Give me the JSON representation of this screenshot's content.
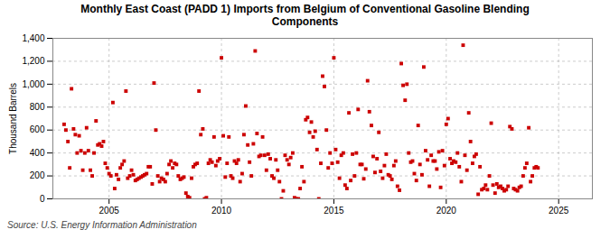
{
  "chart_data": {
    "type": "scatter",
    "title": "Monthly East Coast (PADD 1) Imports from Belgium of Conventional Gasoline Blending\nComponents",
    "ylabel": "Thousand Barrels",
    "source": "Source: U.S. Energy Information Administration",
    "color": "#cc0000",
    "marker": "square",
    "grid": true,
    "xlim": [
      2002.5,
      2026.5
    ],
    "ylim": [
      0,
      1400
    ],
    "xticks": [
      2005,
      2010,
      2015,
      2020,
      2025
    ],
    "yticks": [
      0,
      200,
      400,
      600,
      800,
      {
        "value": 1000,
        "label": "1,000"
      },
      {
        "value": 1200,
        "label": "1,200"
      },
      {
        "value": 1400,
        "label": "1,400"
      }
    ],
    "x": [
      2003.0,
      2003.08,
      2003.17,
      2003.25,
      2003.33,
      2003.42,
      2003.5,
      2003.58,
      2003.67,
      2003.75,
      2003.83,
      2003.92,
      2004.0,
      2004.08,
      2004.17,
      2004.25,
      2004.33,
      2004.42,
      2004.5,
      2004.58,
      2004.67,
      2004.75,
      2004.83,
      2004.92,
      2005.0,
      2005.08,
      2005.17,
      2005.25,
      2005.33,
      2005.42,
      2005.5,
      2005.58,
      2005.67,
      2005.75,
      2005.83,
      2005.92,
      2006.0,
      2006.08,
      2006.17,
      2006.25,
      2006.33,
      2006.42,
      2006.5,
      2006.58,
      2006.67,
      2006.75,
      2006.83,
      2006.92,
      2007.0,
      2007.08,
      2007.17,
      2007.25,
      2007.33,
      2007.42,
      2007.5,
      2007.58,
      2007.67,
      2007.75,
      2007.83,
      2007.92,
      2008.0,
      2008.08,
      2008.17,
      2008.25,
      2008.33,
      2008.42,
      2008.5,
      2008.58,
      2008.67,
      2008.75,
      2008.83,
      2008.92,
      2009.0,
      2009.08,
      2009.17,
      2009.25,
      2009.33,
      2009.42,
      2009.5,
      2009.58,
      2009.67,
      2009.75,
      2009.83,
      2009.92,
      2010.0,
      2010.08,
      2010.17,
      2010.25,
      2010.33,
      2010.42,
      2010.5,
      2010.58,
      2010.67,
      2010.75,
      2010.83,
      2010.92,
      2011.0,
      2011.08,
      2011.17,
      2011.25,
      2011.33,
      2011.42,
      2011.5,
      2011.58,
      2011.67,
      2011.75,
      2011.83,
      2011.92,
      2012.0,
      2012.08,
      2012.17,
      2012.25,
      2012.33,
      2012.42,
      2012.5,
      2012.58,
      2012.67,
      2012.75,
      2012.83,
      2012.92,
      2013.0,
      2013.08,
      2013.17,
      2013.25,
      2013.33,
      2013.42,
      2013.5,
      2013.58,
      2013.67,
      2013.75,
      2013.83,
      2013.92,
      2014.0,
      2014.08,
      2014.17,
      2014.25,
      2014.33,
      2014.42,
      2014.5,
      2014.58,
      2014.67,
      2014.75,
      2014.83,
      2014.92,
      2015.0,
      2015.08,
      2015.17,
      2015.25,
      2015.33,
      2015.42,
      2015.5,
      2015.58,
      2015.67,
      2015.75,
      2015.83,
      2015.92,
      2016.0,
      2016.08,
      2016.17,
      2016.25,
      2016.33,
      2016.42,
      2016.5,
      2016.58,
      2016.67,
      2016.75,
      2016.83,
      2016.92,
      2017.0,
      2017.08,
      2017.17,
      2017.25,
      2017.33,
      2017.42,
      2017.5,
      2017.58,
      2017.67,
      2017.75,
      2017.83,
      2017.92,
      2018.0,
      2018.08,
      2018.17,
      2018.25,
      2018.33,
      2018.42,
      2018.5,
      2018.58,
      2018.67,
      2018.75,
      2018.83,
      2018.92,
      2019.0,
      2019.08,
      2019.17,
      2019.25,
      2019.33,
      2019.42,
      2019.5,
      2019.58,
      2019.67,
      2019.75,
      2019.83,
      2019.92,
      2020.0,
      2020.08,
      2020.17,
      2020.25,
      2020.33,
      2020.42,
      2020.5,
      2020.58,
      2020.67,
      2020.75,
      2020.83,
      2020.92,
      2021.0,
      2021.08,
      2021.17,
      2021.25,
      2021.33,
      2021.42,
      2021.5,
      2021.58,
      2021.67,
      2021.75,
      2021.83,
      2021.92,
      2022.0,
      2022.08,
      2022.17,
      2022.25,
      2022.33,
      2022.42,
      2022.5,
      2022.58,
      2022.67,
      2022.75,
      2022.83,
      2022.92,
      2023.0,
      2023.08,
      2023.17,
      2023.25,
      2023.33,
      2023.42,
      2023.5,
      2023.58,
      2023.67,
      2023.75,
      2023.83,
      2023.92,
      2024.0,
      2024.08
    ],
    "values": [
      650,
      600,
      500,
      270,
      960,
      610,
      560,
      400,
      550,
      420,
      250,
      400,
      620,
      420,
      250,
      200,
      400,
      680,
      470,
      480,
      460,
      500,
      310,
      270,
      220,
      200,
      840,
      90,
      210,
      170,
      270,
      300,
      330,
      940,
      180,
      200,
      250,
      210,
      160,
      170,
      180,
      190,
      200,
      210,
      220,
      280,
      280,
      130,
      1010,
      600,
      200,
      150,
      180,
      170,
      150,
      220,
      300,
      330,
      270,
      310,
      300,
      200,
      170,
      180,
      190,
      50,
      20,
      10,
      180,
      280,
      300,
      310,
      940,
      560,
      610,
      0,
      10,
      310,
      340,
      320,
      540,
      290,
      330,
      350,
      1230,
      550,
      190,
      310,
      540,
      200,
      180,
      330,
      310,
      340,
      150,
      220,
      560,
      810,
      470,
      320,
      200,
      480,
      1290,
      570,
      370,
      380,
      540,
      380,
      250,
      390,
      350,
      200,
      180,
      340,
      250,
      150,
      0,
      70,
      380,
      340,
      300,
      360,
      400,
      10,
      0,
      0,
      90,
      280,
      150,
      690,
      710,
      580,
      670,
      540,
      590,
      430,
      0,
      310,
      1070,
      980,
      600,
      270,
      400,
      310,
      1230,
      430,
      320,
      180,
      380,
      400,
      120,
      90,
      750,
      160,
      390,
      200,
      400,
      780,
      300,
      300,
      175,
      260,
      1030,
      760,
      640,
      370,
      230,
      350,
      580,
      240,
      180,
      290,
      390,
      210,
      200,
      170,
      290,
      330,
      110,
      75,
      1180,
      990,
      860,
      1000,
      400,
      320,
      330,
      220,
      160,
      640,
      300,
      210,
      1150,
      420,
      340,
      110,
      380,
      330,
      330,
      260,
      410,
      100,
      420,
      290,
      650,
      700,
      350,
      310,
      330,
      320,
      400,
      280,
      150,
      1340,
      380,
      250,
      750,
      500,
      310,
      370,
      390,
      40,
      280,
      80,
      90,
      120,
      80,
      200,
      660,
      120,
      50,
      130,
      100,
      110,
      90,
      70,
      80,
      110,
      630,
      610,
      90,
      80,
      70,
      100,
      110,
      200,
      270,
      310,
      620,
      150,
      200,
      270,
      280,
      270
    ]
  }
}
